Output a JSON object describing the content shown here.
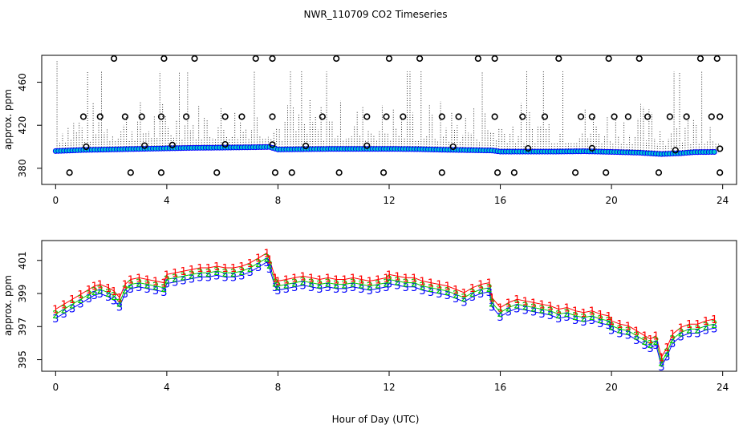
{
  "title": "NWR_110709  CO2 Timeseries",
  "xlabel": "Hour of Day (UTC)",
  "chart_data": [
    {
      "type": "scatter",
      "ylabel": "approx. ppm",
      "xlim": [
        -0.5,
        24.5
      ],
      "ylim": [
        365,
        485
      ],
      "xticks": [
        0,
        4,
        8,
        12,
        16,
        20,
        24
      ],
      "yticks": [
        380,
        420,
        460
      ],
      "colors": {
        "series": "#0000ff",
        "fill": "#00cccc",
        "outlier": "#000000",
        "spikes": "#000000"
      },
      "baseline": [
        [
          0,
          396
        ],
        [
          1,
          397
        ],
        [
          2,
          397.5
        ],
        [
          3,
          398
        ],
        [
          4,
          398.5
        ],
        [
          5,
          399
        ],
        [
          6,
          399.2
        ],
        [
          7,
          399.5
        ],
        [
          7.7,
          399.8
        ],
        [
          8,
          397.5
        ],
        [
          10,
          398
        ],
        [
          12,
          398
        ],
        [
          13,
          397.8
        ],
        [
          14,
          397.2
        ],
        [
          15,
          396.8
        ],
        [
          15.7,
          396.5
        ],
        [
          16,
          395.5
        ],
        [
          18,
          395.5
        ],
        [
          19,
          395.8
        ],
        [
          20,
          395.2
        ],
        [
          21,
          394.5
        ],
        [
          21.8,
          393.2
        ],
        [
          22.5,
          394
        ],
        [
          23,
          395
        ],
        [
          23.8,
          395.2
        ]
      ],
      "outliers_high": [
        2.1,
        3.9,
        5.0,
        7.2,
        7.8,
        10.1,
        12.0,
        13.1,
        15.2,
        15.8,
        18.1,
        19.9,
        21.0,
        23.2,
        23.8
      ],
      "outliers_mid": [
        1.0,
        1.6,
        2.5,
        3.1,
        3.8,
        4.7,
        6.1,
        6.7,
        7.8,
        9.6,
        11.2,
        11.9,
        12.5,
        13.9,
        14.5,
        15.8,
        16.8,
        17.6,
        18.9,
        19.3,
        20.1,
        20.6,
        21.3,
        22.1,
        22.7,
        23.6,
        23.9
      ],
      "outliers_low": [
        0.5,
        2.7,
        3.8,
        5.8,
        7.9,
        8.5,
        10.2,
        11.8,
        13.9,
        15.9,
        16.5,
        18.7,
        19.8,
        21.7,
        23.9
      ]
    },
    {
      "type": "line",
      "ylabel": "approx. ppm",
      "xlim": [
        -0.5,
        24.5
      ],
      "ylim": [
        394.3,
        402.2
      ],
      "xticks": [
        0,
        4,
        8,
        12,
        16,
        20,
        24
      ],
      "yticks": [
        395,
        397,
        399,
        401
      ],
      "series": [
        {
          "marker": "1",
          "color": "#ff0000",
          "offset": 0.55,
          "x": [
            0,
            0.3,
            0.6,
            0.9,
            1.2,
            1.4,
            1.6,
            1.9,
            2.1,
            2.3,
            2.5,
            2.7,
            3.0,
            3.3,
            3.6,
            3.9,
            4.0,
            4.3,
            4.6,
            4.9,
            5.2,
            5.5,
            5.8,
            6.1,
            6.4,
            6.7,
            7.0,
            7.3,
            7.6,
            7.7,
            7.9,
            8.0,
            8.3,
            8.6,
            8.9,
            9.2,
            9.5,
            9.8,
            10.1,
            10.4,
            10.7,
            11.0,
            11.3,
            11.6,
            11.9,
            12.0,
            12.3,
            12.6,
            12.9,
            13.2,
            13.5,
            13.8,
            14.1,
            14.4,
            14.7,
            15.0,
            15.3,
            15.6,
            15.7,
            16.0,
            16.3,
            16.6,
            16.9,
            17.2,
            17.5,
            17.8,
            18.1,
            18.4,
            18.7,
            19.0,
            19.3,
            19.6,
            19.9,
            20.0,
            20.3,
            20.6,
            20.9,
            21.2,
            21.4,
            21.6,
            21.8,
            22.0,
            22.2,
            22.5,
            22.8,
            23.1,
            23.4,
            23.7
          ],
          "y": [
            397.5,
            397.8,
            398.1,
            398.4,
            398.7,
            398.9,
            399.0,
            398.8,
            398.6,
            398.2,
            399.0,
            399.3,
            399.4,
            399.3,
            399.2,
            399.1,
            399.6,
            399.7,
            399.8,
            399.9,
            400.0,
            400.0,
            400.1,
            400.0,
            400.0,
            400.1,
            400.3,
            400.6,
            400.9,
            400.5,
            399.4,
            399.2,
            399.3,
            399.4,
            399.5,
            399.4,
            399.3,
            399.4,
            399.3,
            399.3,
            399.4,
            399.3,
            399.2,
            399.3,
            399.4,
            399.6,
            399.5,
            399.4,
            399.4,
            399.2,
            399.1,
            399.0,
            398.9,
            398.7,
            398.5,
            398.8,
            399.0,
            399.1,
            398.2,
            397.6,
            397.9,
            398.1,
            398.0,
            397.9,
            397.8,
            397.7,
            397.5,
            397.6,
            397.4,
            397.3,
            397.4,
            397.2,
            397.1,
            396.8,
            396.6,
            396.5,
            396.2,
            395.9,
            395.7,
            395.9,
            394.6,
            395.2,
            396.0,
            396.4,
            396.6,
            396.6,
            396.8,
            396.9
          ]
        },
        {
          "marker": "2",
          "color": "#00cc00",
          "offset": 0.25,
          "x": [
            0,
            0.3,
            0.6,
            0.9,
            1.2,
            1.4,
            1.6,
            1.9,
            2.1,
            2.3,
            2.5,
            2.7,
            3.0,
            3.3,
            3.6,
            3.9,
            4.0,
            4.3,
            4.6,
            4.9,
            5.2,
            5.5,
            5.8,
            6.1,
            6.4,
            6.7,
            7.0,
            7.3,
            7.6,
            7.7,
            7.9,
            8.0,
            8.3,
            8.6,
            8.9,
            9.2,
            9.5,
            9.8,
            10.1,
            10.4,
            10.7,
            11.0,
            11.3,
            11.6,
            11.9,
            12.0,
            12.3,
            12.6,
            12.9,
            13.2,
            13.5,
            13.8,
            14.1,
            14.4,
            14.7,
            15.0,
            15.3,
            15.6,
            15.7,
            16.0,
            16.3,
            16.6,
            16.9,
            17.2,
            17.5,
            17.8,
            18.1,
            18.4,
            18.7,
            19.0,
            19.3,
            19.6,
            19.9,
            20.0,
            20.3,
            20.6,
            20.9,
            21.2,
            21.4,
            21.6,
            21.8,
            22.0,
            22.2,
            22.5,
            22.8,
            23.1,
            23.4,
            23.7
          ],
          "y": [
            397.5,
            397.8,
            398.1,
            398.4,
            398.7,
            398.9,
            399.0,
            398.8,
            398.6,
            398.2,
            399.0,
            399.3,
            399.4,
            399.3,
            399.2,
            399.1,
            399.6,
            399.7,
            399.8,
            399.9,
            400.0,
            400.0,
            400.1,
            400.0,
            400.0,
            400.1,
            400.3,
            400.6,
            400.9,
            400.5,
            399.4,
            399.2,
            399.3,
            399.4,
            399.5,
            399.4,
            399.3,
            399.4,
            399.3,
            399.3,
            399.4,
            399.3,
            399.2,
            399.3,
            399.4,
            399.6,
            399.5,
            399.4,
            399.4,
            399.2,
            399.1,
            399.0,
            398.9,
            398.7,
            398.5,
            398.8,
            399.0,
            399.1,
            398.2,
            397.6,
            397.9,
            398.1,
            398.0,
            397.9,
            397.8,
            397.7,
            397.5,
            397.6,
            397.4,
            397.3,
            397.4,
            397.2,
            397.1,
            396.8,
            396.6,
            396.5,
            396.2,
            395.9,
            395.7,
            395.9,
            394.6,
            395.2,
            396.0,
            396.4,
            396.6,
            396.6,
            396.8,
            396.9
          ]
        },
        {
          "marker": "3",
          "color": "#0000ff",
          "offset": 0,
          "x": [
            0,
            0.3,
            0.6,
            0.9,
            1.2,
            1.4,
            1.6,
            1.9,
            2.1,
            2.3,
            2.5,
            2.7,
            3.0,
            3.3,
            3.6,
            3.9,
            4.0,
            4.3,
            4.6,
            4.9,
            5.2,
            5.5,
            5.8,
            6.1,
            6.4,
            6.7,
            7.0,
            7.3,
            7.6,
            7.7,
            7.9,
            8.0,
            8.3,
            8.6,
            8.9,
            9.2,
            9.5,
            9.8,
            10.1,
            10.4,
            10.7,
            11.0,
            11.3,
            11.6,
            11.9,
            12.0,
            12.3,
            12.6,
            12.9,
            13.2,
            13.5,
            13.8,
            14.1,
            14.4,
            14.7,
            15.0,
            15.3,
            15.6,
            15.7,
            16.0,
            16.3,
            16.6,
            16.9,
            17.2,
            17.5,
            17.8,
            18.1,
            18.4,
            18.7,
            19.0,
            19.3,
            19.6,
            19.9,
            20.0,
            20.3,
            20.6,
            20.9,
            21.2,
            21.4,
            21.6,
            21.8,
            22.0,
            22.2,
            22.5,
            22.8,
            23.1,
            23.4,
            23.7
          ],
          "y": [
            397.5,
            397.8,
            398.1,
            398.4,
            398.7,
            398.9,
            399.0,
            398.8,
            398.6,
            398.2,
            399.0,
            399.3,
            399.4,
            399.3,
            399.2,
            399.1,
            399.6,
            399.7,
            399.8,
            399.9,
            400.0,
            400.0,
            400.1,
            400.0,
            400.0,
            400.1,
            400.3,
            400.6,
            400.9,
            400.5,
            399.4,
            399.2,
            399.3,
            399.4,
            399.5,
            399.4,
            399.3,
            399.4,
            399.3,
            399.3,
            399.4,
            399.3,
            399.2,
            399.3,
            399.4,
            399.6,
            399.5,
            399.4,
            399.4,
            399.2,
            399.1,
            399.0,
            398.9,
            398.7,
            398.5,
            398.8,
            399.0,
            399.1,
            398.2,
            397.6,
            397.9,
            398.1,
            398.0,
            397.9,
            397.8,
            397.7,
            397.5,
            397.6,
            397.4,
            397.3,
            397.4,
            397.2,
            397.1,
            396.8,
            396.6,
            396.5,
            396.2,
            395.9,
            395.7,
            395.9,
            394.6,
            395.2,
            396.0,
            396.4,
            396.6,
            396.6,
            396.8,
            396.9
          ]
        }
      ]
    }
  ]
}
